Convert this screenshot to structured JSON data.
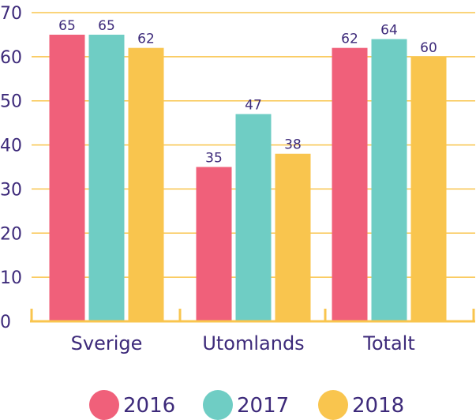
{
  "chart_data": {
    "type": "bar",
    "categories": [
      "Sverige",
      "Utomlands",
      "Totalt"
    ],
    "series": [
      {
        "name": "2016",
        "color": "#f0607a",
        "values": [
          65,
          35,
          62
        ]
      },
      {
        "name": "2017",
        "color": "#6fcdc4",
        "values": [
          65,
          47,
          64
        ]
      },
      {
        "name": "2018",
        "color": "#f9c54e",
        "values": [
          62,
          38,
          60
        ]
      }
    ],
    "ylim": [
      0,
      70
    ],
    "yticks": [
      0,
      10,
      20,
      30,
      40,
      50,
      60,
      70
    ],
    "grid": true,
    "legend_position": "bottom",
    "colors": {
      "text": "#3d2a7a",
      "grid": "#f9c54e",
      "background": "#ffffff"
    }
  }
}
